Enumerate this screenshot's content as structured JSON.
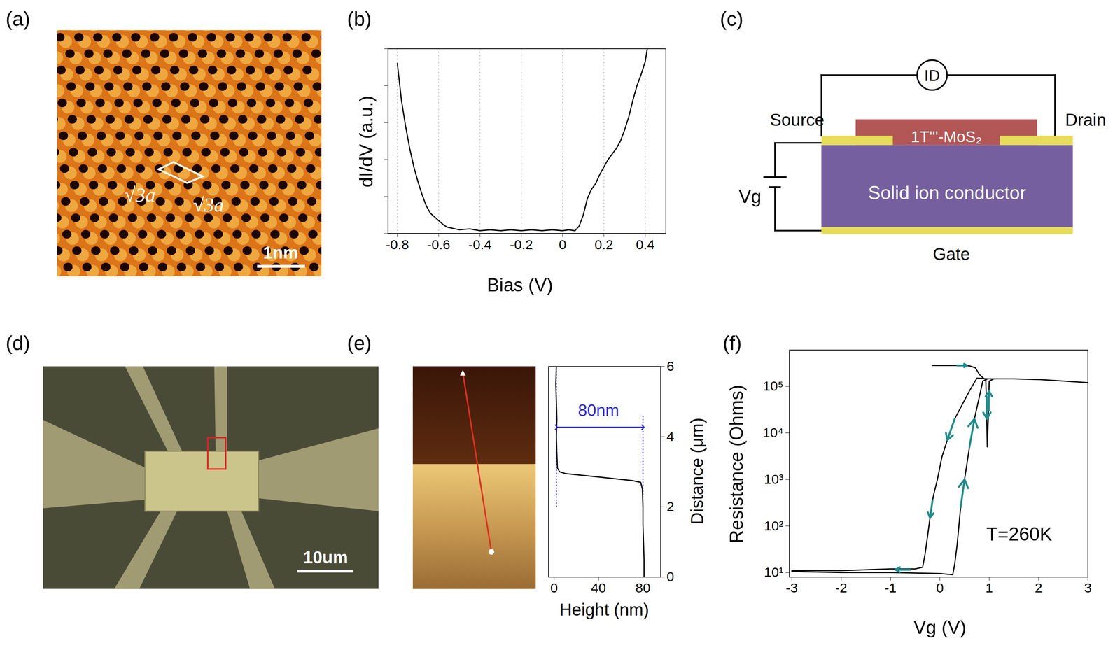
{
  "chart_data": [
    {
      "panel": "(b)",
      "type": "line",
      "x_label": "Bias (V)",
      "y_label": "dI/dV (a.u.)",
      "color": "#000000",
      "x": [
        -0.8,
        -0.78,
        -0.76,
        -0.74,
        -0.72,
        -0.7,
        -0.68,
        -0.66,
        -0.64,
        -0.62,
        -0.6,
        -0.58,
        -0.56,
        -0.54,
        -0.5,
        -0.45,
        -0.4,
        -0.35,
        -0.3,
        -0.25,
        -0.2,
        -0.15,
        -0.1,
        -0.05,
        0,
        0.03,
        0.06,
        0.08,
        0.1,
        0.12,
        0.14,
        0.16,
        0.18,
        0.2,
        0.22,
        0.24,
        0.26,
        0.28,
        0.3,
        0.32,
        0.34,
        0.36,
        0.38,
        0.4,
        0.41
      ],
      "values": [
        0.92,
        0.72,
        0.58,
        0.46,
        0.36,
        0.28,
        0.21,
        0.15,
        0.11,
        0.09,
        0.07,
        0.05,
        0.035,
        0.03,
        0.02,
        0.025,
        0.015,
        0.02,
        0.015,
        0.02,
        0.015,
        0.02,
        0.015,
        0.02,
        0.015,
        0.02,
        0.015,
        0.04,
        0.1,
        0.19,
        0.24,
        0.27,
        0.32,
        0.36,
        0.4,
        0.43,
        0.46,
        0.5,
        0.56,
        0.63,
        0.72,
        0.8,
        0.86,
        0.93,
        1.0
      ],
      "xlim": [
        -0.845,
        0.5
      ],
      "ylim": [
        0,
        1
      ],
      "xticks": [
        -0.8,
        -0.6,
        -0.4,
        -0.2,
        0,
        0.2,
        0.4
      ],
      "yticks": [
        0,
        0.2,
        0.4,
        0.6,
        0.8,
        1
      ],
      "tick_labels": "x",
      "grid": "x"
    },
    {
      "panel": "(e)",
      "type": "line",
      "x_label": "Height (nm)",
      "y_label": "Distance (μm)",
      "color": "#000000",
      "x": [
        81,
        81,
        80.5,
        80,
        80,
        79.5,
        78,
        70,
        40,
        10,
        5,
        3,
        2.5,
        2,
        2.5,
        2,
        1.5,
        2
      ],
      "values": [
        0,
        0.5,
        1,
        1.5,
        2,
        2.5,
        2.7,
        2.75,
        2.85,
        2.95,
        3.0,
        3.1,
        3.5,
        4,
        4.5,
        5,
        5.5,
        6
      ],
      "xlim": [
        -5,
        96
      ],
      "ylim": [
        0,
        6
      ],
      "xticks": [
        0,
        40,
        80
      ],
      "yticks": [
        0,
        2,
        4,
        6
      ],
      "annotation_color": "#2b2bd0",
      "annotations": [
        {
          "text": "80nm",
          "x": 40,
          "y": 4.74
        }
      ],
      "dimension_arrow": {
        "x1": 2,
        "x2": 80,
        "y": 4.27
      },
      "dashed_lines": [
        {
          "x": 2,
          "y1": 2,
          "y2": 5.9
        },
        {
          "x": 80,
          "y1": 2,
          "y2": 4.6
        }
      ]
    },
    {
      "panel": "(f)",
      "type": "line",
      "x_label": "Vg (V)",
      "y_label": "Resistance (Ohms)",
      "color": "#000000",
      "log": "y",
      "x": [
        -0.15,
        0.3,
        0.6,
        0.72,
        0.8,
        0.88,
        0.93,
        0.95,
        0.96,
        0.98,
        1.0,
        1.1,
        1.5,
        2.0,
        2.5,
        3.0,
        2.5,
        2.0,
        1.5,
        1.0,
        0.75,
        0.6,
        0.45,
        0.3,
        0.15,
        0.04,
        -0.05,
        -0.12,
        -0.15,
        -0.2,
        -0.25,
        -0.3,
        -0.35,
        -0.5,
        -1,
        -2,
        -3,
        -3,
        -2,
        -1,
        0,
        0.26,
        0.3,
        0.35,
        0.42,
        0.5,
        0.6,
        0.7,
        0.8,
        0.87,
        0.95
      ],
      "values": [
        280000,
        280000,
        275000,
        250000,
        180000,
        150000,
        140000,
        20000,
        5000,
        20000,
        130000,
        145000,
        145000,
        140000,
        130000,
        120000,
        130000,
        140000,
        145000,
        145000,
        150000,
        80000,
        40000,
        20000,
        7000,
        3000,
        1000,
        500,
        350,
        150,
        60,
        25,
        13,
        12,
        12,
        11,
        11,
        10.5,
        10,
        10,
        9.5,
        9,
        15,
        40,
        250,
        1000,
        5000,
        20000,
        60000,
        130000,
        140000
      ],
      "xlim": [
        -3.05,
        3
      ],
      "ylim": [
        8,
        600000
      ],
      "xticks": [
        -3,
        -2,
        -1,
        0,
        1,
        2,
        3
      ],
      "yticks": [
        {
          "value": 10,
          "label": "10¹"
        },
        {
          "value": 100,
          "label": "10²"
        },
        {
          "value": 1000,
          "label": "10³"
        },
        {
          "value": 10000,
          "label": "10⁴"
        },
        {
          "value": 100000,
          "label": "10⁵"
        }
      ],
      "annotations": [
        {
          "text": "T=260K",
          "x": 0.94,
          "y": 66
        }
      ],
      "arrow_color": "#1f8c8c",
      "arrows": [
        {
          "x1": 0.35,
          "y1": 280000,
          "x2": 0.55,
          "y2": 280000
        },
        {
          "x1": -0.6,
          "y1": 11.5,
          "x2": -0.9,
          "y2": 11.5
        },
        {
          "x1": 0.3,
          "y1": 20000,
          "x2": 0.15,
          "y2": 7000
        },
        {
          "x1": -0.15,
          "y1": 350,
          "x2": -0.2,
          "y2": 150
        },
        {
          "x1": 0.42,
          "y1": 250,
          "x2": 0.5,
          "y2": 1000
        },
        {
          "x1": 0.6,
          "y1": 5000,
          "x2": 0.7,
          "y2": 20000
        },
        {
          "x1": 0.95,
          "y1": 60000,
          "x2": 0.955,
          "y2": 20000
        },
        {
          "x1": 0.99,
          "y1": 30000,
          "x2": 0.995,
          "y2": 80000
        }
      ]
    }
  ],
  "images": {
    "a": {
      "panel": "(a)",
      "lattice_labels": [
        "√3a",
        "√3a"
      ],
      "scale_bar": "1nm"
    },
    "d": {
      "panel": "(d)",
      "scale_bar": "10um"
    },
    "e": {
      "panel": "(e)"
    }
  },
  "diagram": {
    "panel": "(c)",
    "ammeter": "ID",
    "source": "Source",
    "drain": "Drain",
    "channel": "1T'''-MoS₂",
    "substrate": "Solid ion conductor",
    "gate_voltage": "Vg",
    "gate": "Gate"
  }
}
